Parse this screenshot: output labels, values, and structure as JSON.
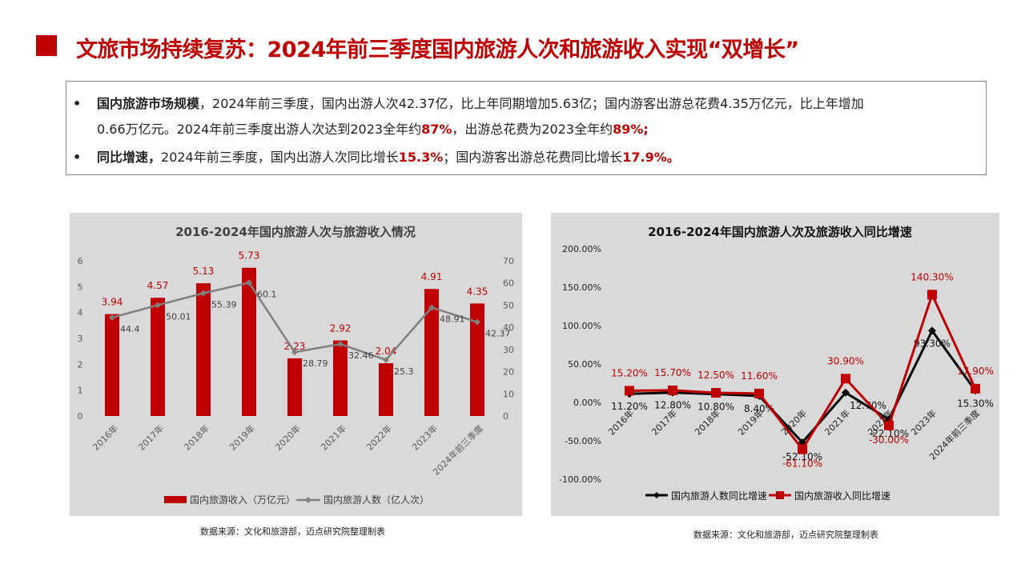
{
  "header": {
    "title": "文旅市场持续复苏：2024年前三季度国内旅游人次和旅游收入实现“双增长”"
  },
  "summary": {
    "bullet_symbol": "•",
    "b1_head": "国内旅游市场规模",
    "b1_text1": "，2024年前三季度，国内出游人次42.37亿，比上年同期增加5.63亿；国内游客出游总花费4.35万亿元，比上年增加",
    "b1_text2": "0.66万亿元。2024年前三季度出游人次达到2023全年约",
    "b1_hl1": "87%",
    "b1_text3": "，出游总花费为2023全年约",
    "b1_hl2": "89%;",
    "b2_head": "同比增速，",
    "b2_text1": "2024年前三季度，国内出游人次同比增长",
    "b2_hl1": "15.3%",
    "b2_text2": "；国内游客出游总花费同比增长",
    "b2_hl2": "17.9%。"
  },
  "colors": {
    "accent": "#c00000",
    "panel": "#d9d9d9",
    "line_gray": "#7f7f7f",
    "line_black": "#000000"
  },
  "source_note": "数据来源：文化和旅游部，迈点研究院整理制表",
  "chart_data": [
    {
      "type": "bar",
      "title": "2016-2024年国内旅游人次与旅游收入情况",
      "categories": [
        "2016年",
        "2017年",
        "2018年",
        "2019年",
        "2020年",
        "2021年",
        "2022年",
        "2023年",
        "2024年前三季度"
      ],
      "series": [
        {
          "name": "国内旅游收入（万亿元）",
          "type": "bar",
          "axis": "left",
          "color": "#c00000",
          "values": [
            3.94,
            4.57,
            5.13,
            5.73,
            2.23,
            2.92,
            2.04,
            4.91,
            4.35
          ],
          "labels": [
            "3.94",
            "4.57",
            "5.13",
            "5.73",
            "2.23",
            "2.92",
            "2.04",
            "4.91",
            "4.35"
          ]
        },
        {
          "name": "国内旅游人数（亿人次）",
          "type": "line",
          "axis": "right",
          "color": "#7f7f7f",
          "values": [
            44.4,
            50.01,
            55.39,
            60.1,
            28.79,
            32.46,
            25.3,
            48.91,
            42.37
          ],
          "labels": [
            "44.4",
            "50.01",
            "55.39",
            "60.1",
            "28.79",
            "32.46",
            "25.3",
            "48.91",
            "42.37"
          ]
        }
      ],
      "y_left": {
        "ylim": [
          0,
          6
        ],
        "ticks": [
          "0",
          "1",
          "2",
          "3",
          "4",
          "5",
          "6"
        ]
      },
      "y_right": {
        "ylim": [
          0,
          70
        ],
        "ticks": [
          "0",
          "10",
          "20",
          "30",
          "40",
          "50",
          "60",
          "70"
        ]
      },
      "legend": "bottom"
    },
    {
      "type": "line",
      "title": "2016-2024年国内旅游人次及旅游收入同比增速",
      "categories": [
        "2016年",
        "2017年",
        "2018年",
        "2019年",
        "2020年",
        "2021年",
        "2022年",
        "2023年",
        "2024年前三季度"
      ],
      "series": [
        {
          "name": "国内旅游人数同比增速",
          "color": "#000000",
          "marker": "diamond",
          "values": [
            11.2,
            12.8,
            10.8,
            8.4,
            -52.1,
            12.7,
            -22.1,
            93.3,
            15.3
          ],
          "labels": [
            "11.20%",
            "12.80%",
            "10.80%",
            "8.40%",
            "-52.10%",
            "12.70%",
            "-22.10%",
            "93.30%",
            "15.30%"
          ]
        },
        {
          "name": "国内旅游收入同比增速",
          "color": "#c00000",
          "marker": "square",
          "values": [
            15.2,
            15.7,
            12.5,
            11.6,
            -61.1,
            30.9,
            -30.0,
            140.3,
            17.9
          ],
          "labels": [
            "15.20%",
            "15.70%",
            "12.50%",
            "11.60%",
            "-61.10%",
            "30.90%",
            "-30.00%",
            "140.30%",
            "17.90%"
          ]
        }
      ],
      "ylim": [
        -100,
        200
      ],
      "y_ticks": [
        "-100.00%",
        "-50.00%",
        "0.00%",
        "50.00%",
        "100.00%",
        "150.00%",
        "200.00%"
      ],
      "legend": "bottom"
    }
  ]
}
